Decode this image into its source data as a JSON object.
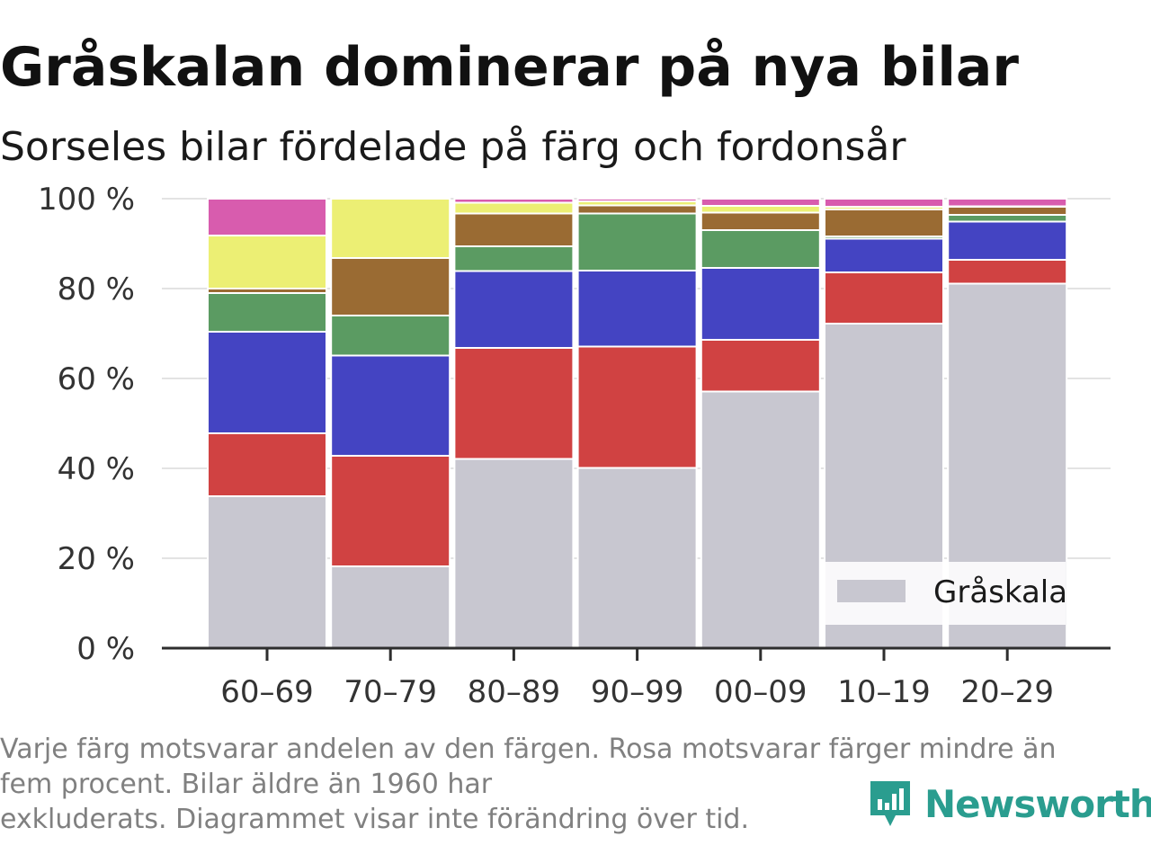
{
  "title": "Gråskalan dominerar på nya bilar",
  "subtitle": "Sorseles bilar fördelade på färg och fordonsår",
  "footnote": [
    "Varje färg motsvarar andelen av den färgen. Rosa motsvarar färger mindre än",
    "fem procent. Bilar äldre än 1960 har",
    "exkluderats. Diagrammet visar inte förändring över tid."
  ],
  "brand": {
    "name": "Newsworthy",
    "icon": "newsworthy-logo-icon",
    "color": "#2a9d8f"
  },
  "chart_data": {
    "type": "bar",
    "stacked": true,
    "categories": [
      "60–69",
      "70–79",
      "80–89",
      "90–99",
      "00–09",
      "10–19",
      "20–29"
    ],
    "ylim": [
      0,
      100
    ],
    "yticks": [
      "0 %",
      "20 %",
      "40 %",
      "60 %",
      "80 %",
      "100 %"
    ],
    "grid": true,
    "legend": {
      "position": "bottom-right",
      "entries": [
        "Gråskala"
      ]
    },
    "series": [
      {
        "name": "Gråskala",
        "color": "#c8c7d0",
        "values": [
          33.8,
          18.2,
          42.1,
          40.1,
          57.1,
          72.2,
          81.1
        ]
      },
      {
        "color": "#d04242",
        "values": [
          14.0,
          24.6,
          24.7,
          27.0,
          11.5,
          11.4,
          5.3
        ]
      },
      {
        "color": "#4444c2",
        "values": [
          22.6,
          22.3,
          17.1,
          16.9,
          16.0,
          7.5,
          8.5
        ]
      },
      {
        "color": "#5b9b62",
        "values": [
          8.6,
          8.9,
          5.5,
          12.7,
          8.4,
          0.5,
          1.5
        ]
      },
      {
        "color": "#9a6b33",
        "values": [
          1.0,
          12.8,
          7.3,
          1.8,
          3.9,
          6.0,
          1.8
        ]
      },
      {
        "color": "#ecef74",
        "values": [
          11.8,
          13.2,
          2.4,
          0.9,
          1.5,
          0.6,
          0.1
        ]
      },
      {
        "color": "#d85cae",
        "values": [
          8.2,
          0.0,
          0.9,
          0.6,
          1.6,
          1.8,
          1.7
        ]
      }
    ]
  }
}
